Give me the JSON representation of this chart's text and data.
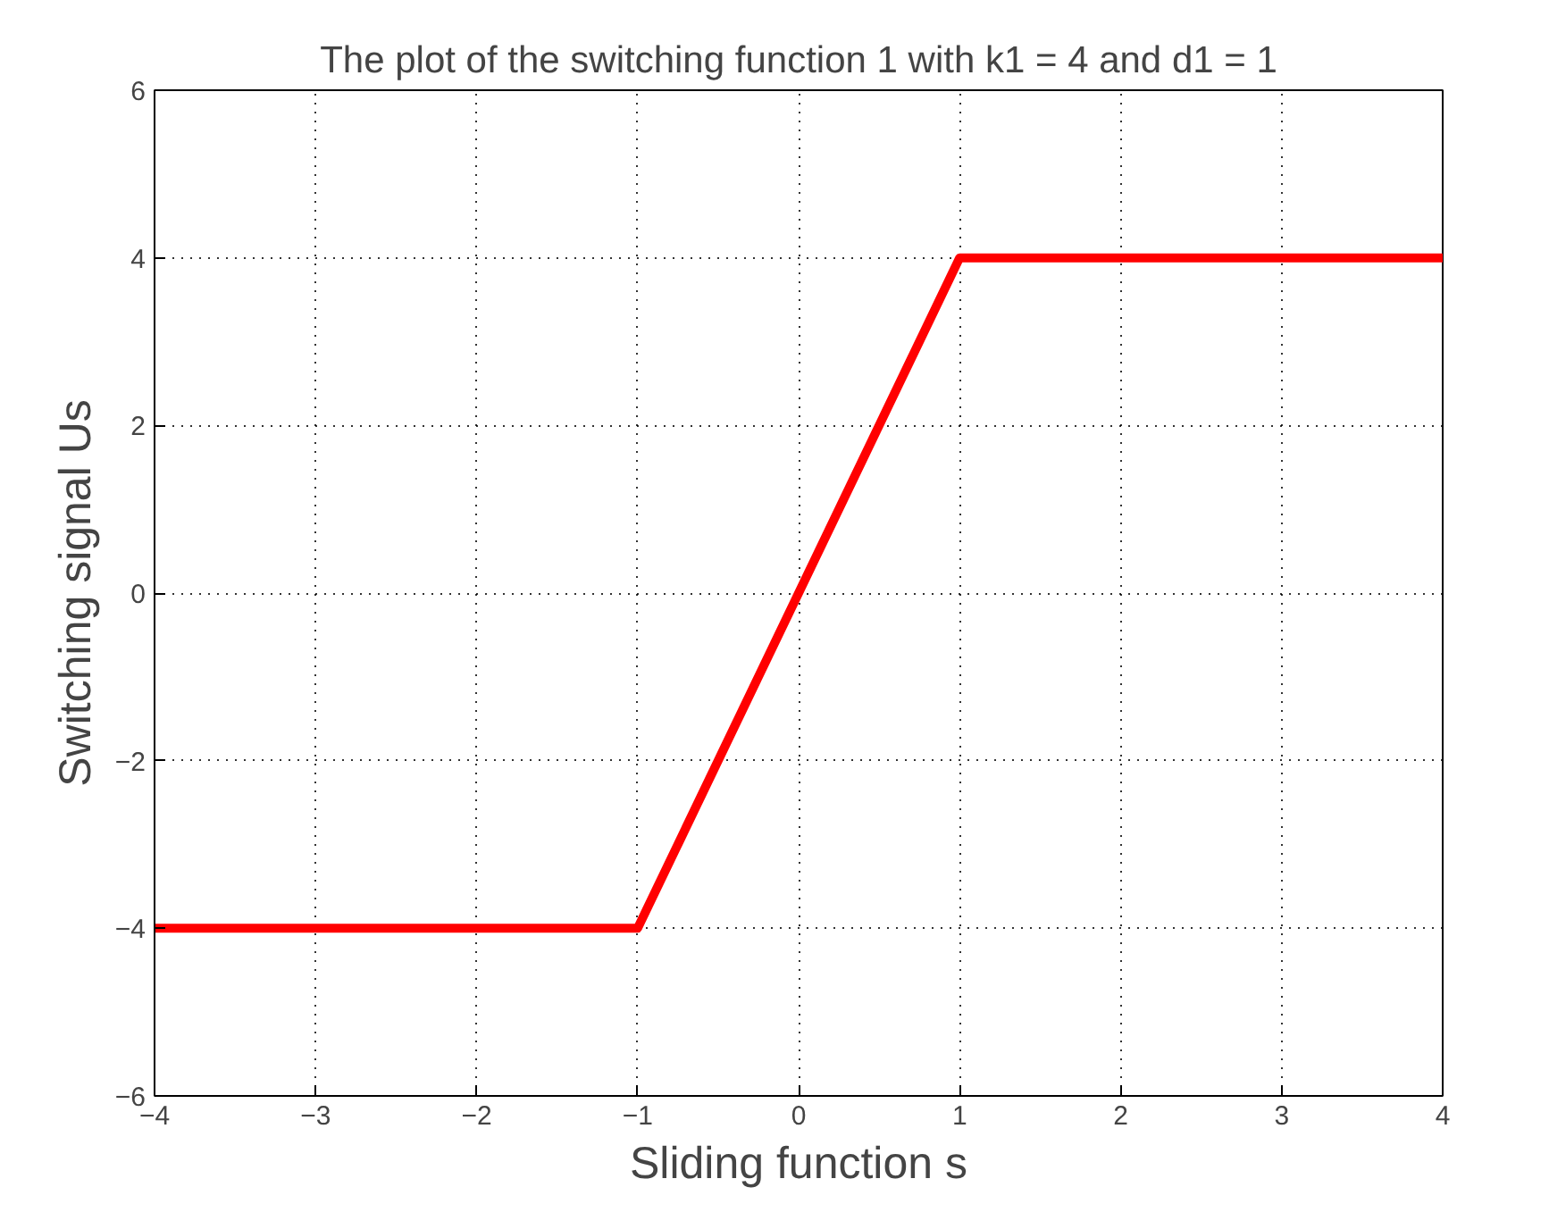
{
  "chart_data": {
    "type": "line",
    "title": "The plot of the switching function 1 with k1 = 4 and d1 = 1",
    "xlabel": "Sliding function s",
    "ylabel": "Switching signal Us",
    "x": [
      -4,
      -1,
      1,
      4
    ],
    "series": [
      {
        "color": "#ff0000",
        "values": [
          -4,
          -4,
          4,
          4
        ]
      }
    ],
    "xlim": [
      -4,
      4
    ],
    "ylim": [
      -6,
      6
    ],
    "xticks": [
      {
        "value": -4,
        "label": "−4"
      },
      {
        "value": -3,
        "label": "−3"
      },
      {
        "value": -2,
        "label": "−2"
      },
      {
        "value": -1,
        "label": "−1"
      },
      0,
      1,
      2,
      3,
      4
    ],
    "yticks": [
      {
        "value": -6,
        "label": "−6"
      },
      {
        "value": -4,
        "label": "−4"
      },
      {
        "value": -2,
        "label": "−2"
      },
      0,
      2,
      4,
      6
    ],
    "grid": true,
    "line_style": "solid",
    "marker": "none"
  }
}
